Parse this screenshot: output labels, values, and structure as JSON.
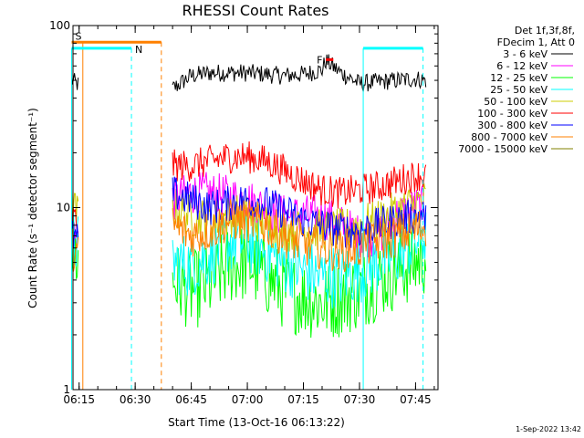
{
  "chart_data": {
    "type": "line",
    "title": "RHESSI Count Rates",
    "xlabel": "Start Time (13-Oct-16 06:13:22)",
    "ylabel": "Count Rate (s⁻¹ detector segment⁻¹)",
    "y_scale": "log",
    "ylim": [
      1,
      100
    ],
    "xlim": [
      "06:13:22",
      "07:51:00"
    ],
    "x_ticks": [
      "06:15",
      "06:30",
      "06:45",
      "07:00",
      "07:15",
      "07:30",
      "07:45"
    ],
    "y_ticks": [
      "1",
      "10",
      "100"
    ],
    "grid": false,
    "legend_header": [
      "Det 1f,3f,8f,",
      "FDecim 1, Att 0"
    ],
    "legend_placement": "right",
    "footer_timestamp": "1-Sep-2022 13:42",
    "series": [
      {
        "name": "3 - 6 keV",
        "color": "#000000",
        "x": [
          "06:13",
          "06:15",
          "06:30",
          "06:37",
          "06:40",
          "06:45",
          "06:50",
          "07:00",
          "07:10",
          "07:15",
          "07:20",
          "07:21",
          "07:25",
          "07:30",
          "07:35",
          "07:40",
          "07:45",
          "07:48"
        ],
        "values": [
          50,
          47,
          null,
          null,
          45,
          53,
          55,
          55,
          53,
          54,
          57,
          64,
          55,
          48,
          49,
          50,
          51,
          50
        ]
      },
      {
        "name": "6 - 12 keV",
        "color": "#ff00ff",
        "x": [
          "06:13",
          "06:15",
          "06:37",
          "06:40",
          "06:45",
          "06:50",
          "07:00",
          "07:10",
          "07:15",
          "07:20",
          "07:25",
          "07:30",
          "07:35",
          "07:40",
          "07:45",
          "07:48"
        ],
        "values": [
          8,
          7,
          null,
          11,
          12,
          12,
          11,
          9,
          9,
          9,
          8,
          7,
          7,
          9,
          10,
          10
        ]
      },
      {
        "name": "12 - 25 keV",
        "color": "#00ff00",
        "x": [
          "06:13",
          "06:15",
          "06:37",
          "06:40",
          "06:45",
          "06:50",
          "06:55",
          "07:00",
          "07:05",
          "07:10",
          "07:15",
          "07:20",
          "07:25",
          "07:30",
          "07:35",
          "07:40",
          "07:45",
          "07:48"
        ],
        "values": [
          6,
          5,
          null,
          4,
          3.5,
          3.8,
          4.8,
          5,
          4.2,
          3.5,
          3.2,
          3.0,
          3.2,
          3.5,
          4,
          4.5,
          5,
          5.5
        ]
      },
      {
        "name": "25 - 50 keV",
        "color": "#00ffff",
        "x": [
          "06:13",
          "06:15",
          "06:37",
          "06:40",
          "06:45",
          "06:50",
          "06:55",
          "07:00",
          "07:05",
          "07:10",
          "07:15",
          "07:20",
          "07:25",
          "07:30",
          "07:35",
          "07:40",
          "07:45",
          "07:48"
        ],
        "values": [
          7,
          6,
          null,
          5,
          4.8,
          5.5,
          6.5,
          6.5,
          5.8,
          5.0,
          4.5,
          4.2,
          4.2,
          4.5,
          5,
          5.5,
          6.5,
          7
        ]
      },
      {
        "name": "50 - 100 keV",
        "color": "#cccc00",
        "x": [
          "06:13",
          "06:15",
          "06:37",
          "06:40",
          "06:45",
          "06:50",
          "06:55",
          "07:00",
          "07:05",
          "07:10",
          "07:15",
          "07:20",
          "07:25",
          "07:30",
          "07:35",
          "07:40",
          "07:45",
          "07:48"
        ],
        "values": [
          10,
          9,
          null,
          10,
          9,
          8.5,
          9,
          9,
          8,
          7.5,
          7.5,
          7.5,
          7.5,
          8,
          8.5,
          9.5,
          10.5,
          11
        ]
      },
      {
        "name": "100 - 300 keV",
        "color": "#ff0000",
        "x": [
          "06:13",
          "06:15",
          "06:37",
          "06:40",
          "06:45",
          "06:50",
          "06:55",
          "07:00",
          "07:05",
          "07:10",
          "07:15",
          "07:20",
          "07:25",
          "07:30",
          "07:35",
          "07:40",
          "07:45",
          "07:48"
        ],
        "values": [
          9,
          8,
          null,
          17,
          17,
          18,
          19,
          19,
          18,
          16,
          14,
          12.5,
          12,
          12.5,
          13,
          14,
          15,
          15
        ]
      },
      {
        "name": "300 - 800 keV",
        "color": "#0000ff",
        "x": [
          "06:13",
          "06:15",
          "06:37",
          "06:40",
          "06:45",
          "06:50",
          "06:55",
          "07:00",
          "07:05",
          "07:10",
          "07:15",
          "07:20",
          "07:25",
          "07:30",
          "07:35",
          "07:40",
          "07:45",
          "07:48"
        ],
        "values": [
          7,
          6.5,
          null,
          12,
          11,
          10,
          10.5,
          11,
          10.5,
          9.5,
          8.5,
          8,
          7.5,
          7.5,
          8,
          8.5,
          9,
          9
        ]
      },
      {
        "name": "800 - 7000 keV",
        "color": "#ff8000",
        "x": [
          "06:13",
          "06:15",
          "06:37",
          "06:40",
          "06:45",
          "06:50",
          "06:55",
          "07:00",
          "07:05",
          "07:10",
          "07:15",
          "07:20",
          "07:25",
          "07:30",
          "07:35",
          "07:40",
          "07:45",
          "07:48"
        ],
        "values": [
          6,
          5.5,
          null,
          8,
          7,
          7.5,
          8.5,
          8.5,
          8,
          7,
          6.2,
          6,
          5.8,
          6,
          6.5,
          7,
          7.5,
          8
        ]
      },
      {
        "name": "7000 - 15000 keV",
        "color": "#808000",
        "x": [],
        "values": []
      }
    ],
    "annotations": {
      "bars": [
        {
          "label": "S",
          "color": "#ff8000",
          "from": "06:13",
          "to": "06:37",
          "level": 81,
          "line_at": [
            "06:16",
            "06:37"
          ],
          "line_style": [
            "solid",
            "dashed"
          ]
        },
        {
          "label": "N",
          "color": "#00ffff",
          "from": "06:13",
          "to": "06:29",
          "level": 75,
          "line_at": [
            "06:13",
            "06:29"
          ],
          "line_style": [
            "solid",
            "dashed"
          ]
        },
        {
          "label": "",
          "color": "#00ffff",
          "from": "07:31",
          "to": "07:47",
          "level": 75,
          "line_at": [
            "07:31",
            "07:47"
          ],
          "line_style": [
            "solid",
            "dashed"
          ]
        },
        {
          "label": "F",
          "color": "#ff0000",
          "from": "07:21",
          "to": "07:23",
          "level": 65,
          "line_at": [],
          "line_style": []
        }
      ]
    }
  }
}
